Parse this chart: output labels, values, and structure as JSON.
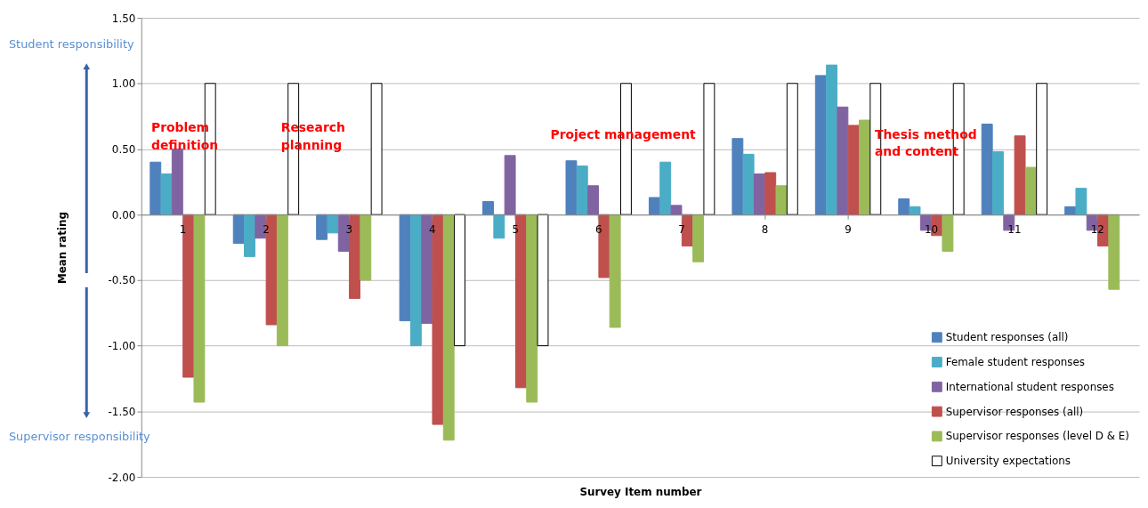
{
  "chart_data": {
    "type": "bar",
    "xlabel": "Survey Item number",
    "ylabel": "Mean rating",
    "categories": [
      "1",
      "2",
      "3",
      "4",
      "5",
      "6",
      "7",
      "8",
      "9",
      "10",
      "11",
      "12"
    ],
    "series": [
      {
        "name": "Student responses (all)",
        "color": "#4f81bd",
        "values": [
          0.4,
          -0.22,
          -0.19,
          -0.81,
          0.1,
          0.41,
          0.13,
          0.58,
          1.06,
          0.12,
          0.69,
          0.06
        ]
      },
      {
        "name": "Female student responses",
        "color": "#4bacc6",
        "values": [
          0.31,
          -0.32,
          -0.14,
          -1.0,
          -0.18,
          0.37,
          0.4,
          0.46,
          1.14,
          0.06,
          0.48,
          0.2
        ]
      },
      {
        "name": "International student responses",
        "color": "#8064a2",
        "values": [
          0.5,
          -0.18,
          -0.28,
          -0.83,
          0.45,
          0.22,
          0.07,
          0.31,
          0.82,
          -0.12,
          -0.12,
          -0.12
        ]
      },
      {
        "name": "Supervisor responses (all)",
        "color": "#c0504d",
        "values": [
          -1.24,
          -0.84,
          -0.64,
          -1.6,
          -1.32,
          -0.48,
          -0.24,
          0.32,
          0.68,
          -0.16,
          0.6,
          -0.24
        ]
      },
      {
        "name": "Supervisor responses (level D & E)",
        "color": "#9bbb59",
        "values": [
          -1.43,
          -1.0,
          -0.5,
          -1.72,
          -1.43,
          -0.86,
          -0.36,
          0.22,
          0.72,
          -0.28,
          0.36,
          -0.57
        ]
      },
      {
        "name": "University expectations",
        "color": "#ffffff",
        "values": [
          1.0,
          1.0,
          1.0,
          -1.0,
          -1.0,
          1.0,
          1.0,
          1.0,
          1.0,
          1.0,
          1.0,
          null
        ]
      }
    ],
    "ylim": [
      -2.0,
      1.5
    ],
    "yticks": [
      {
        "value": -2,
        "label": "-2.00"
      },
      {
        "value": -1.5,
        "label": "-1.50"
      },
      {
        "value": -1,
        "label": "-1.00"
      },
      {
        "value": -0.5,
        "label": "-0.50"
      },
      {
        "value": 0,
        "label": "0.00"
      },
      {
        "value": 0.5,
        "label": "0.50"
      },
      {
        "value": 1,
        "label": "1.00"
      },
      {
        "value": 1.5,
        "label": "1.50"
      }
    ],
    "grid": "y",
    "legend": "bottom right",
    "annotations": [
      "Problem\ndefinition",
      "Research\nplanning",
      "Project management",
      "Thesis method\nand content",
      "Student responsibility",
      "Supervisor responsibility"
    ]
  }
}
